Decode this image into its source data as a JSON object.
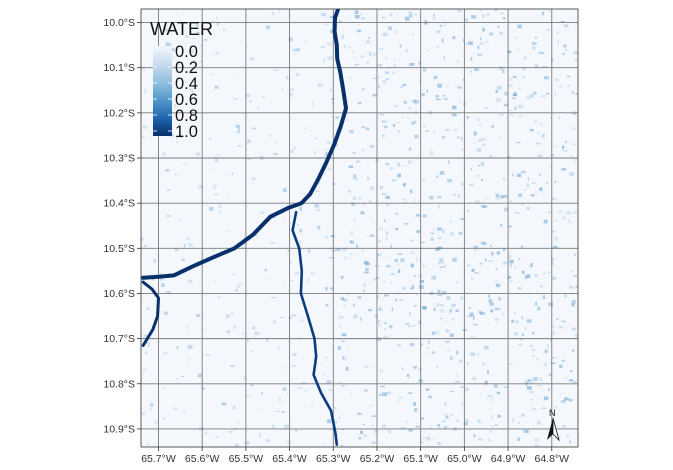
{
  "chart_data": {
    "type": "heatmap",
    "title": "",
    "xlabel": "",
    "ylabel": "",
    "x_ticks": [
      "65.7°W",
      "65.6°W",
      "65.5°W",
      "65.4°W",
      "65.3°W",
      "65.2°W",
      "65.1°W",
      "65.0°W",
      "64.9°W",
      "64.8°W"
    ],
    "y_ticks": [
      "10.0°S",
      "10.1°S",
      "10.2°S",
      "10.3°S",
      "10.4°S",
      "10.5°S",
      "10.6°S",
      "10.7°S",
      "10.8°S",
      "10.9°S"
    ],
    "xlim": [
      -65.74,
      -64.74
    ],
    "ylim": [
      -10.94,
      -9.97
    ],
    "grid": true,
    "legend": {
      "title": "WATER",
      "labels": [
        "0.0",
        "0.2",
        "0.4",
        "0.6",
        "0.8",
        "1.0"
      ],
      "range": [
        0,
        1
      ],
      "placement": "top-left",
      "color_low": "#f2f6fc",
      "color_high": "#08306b"
    },
    "north_arrow": {
      "label": "N",
      "placement": "bottom-right"
    },
    "river_path_lonlat": [
      [
        -65.289,
        -9.97
      ],
      [
        -65.296,
        -9.99
      ],
      [
        -65.297,
        -10.02
      ],
      [
        -65.292,
        -10.05
      ],
      [
        -65.291,
        -10.08
      ],
      [
        -65.284,
        -10.11
      ],
      [
        -65.277,
        -10.15
      ],
      [
        -65.271,
        -10.19
      ],
      [
        -65.283,
        -10.23
      ],
      [
        -65.298,
        -10.27
      ],
      [
        -65.316,
        -10.31
      ],
      [
        -65.336,
        -10.35
      ],
      [
        -65.353,
        -10.38
      ],
      [
        -65.373,
        -10.4
      ],
      [
        -65.402,
        -10.41
      ],
      [
        -65.444,
        -10.43
      ],
      [
        -65.484,
        -10.47
      ],
      [
        -65.526,
        -10.5
      ],
      [
        -65.575,
        -10.52
      ],
      [
        -65.622,
        -10.54
      ],
      [
        -65.665,
        -10.56
      ],
      [
        -65.7,
        -10.563
      ],
      [
        -65.735,
        -10.565
      ]
    ],
    "river_branch_lonlat": [
      [
        -65.735,
        -10.575
      ],
      [
        -65.715,
        -10.59
      ],
      [
        -65.7,
        -10.61
      ],
      [
        -65.702,
        -10.65
      ],
      [
        -65.713,
        -10.68
      ],
      [
        -65.735,
        -10.715
      ]
    ],
    "south_channel_lonlat": [
      [
        -65.385,
        -10.42
      ],
      [
        -65.393,
        -10.46
      ],
      [
        -65.378,
        -10.5
      ],
      [
        -65.372,
        -10.55
      ],
      [
        -65.374,
        -10.6
      ],
      [
        -65.358,
        -10.65
      ],
      [
        -65.343,
        -10.7
      ],
      [
        -65.339,
        -10.74
      ],
      [
        -65.345,
        -10.78
      ],
      [
        -65.328,
        -10.82
      ],
      [
        -65.305,
        -10.86
      ],
      [
        -65.295,
        -10.91
      ],
      [
        -65.292,
        -10.935
      ]
    ]
  }
}
